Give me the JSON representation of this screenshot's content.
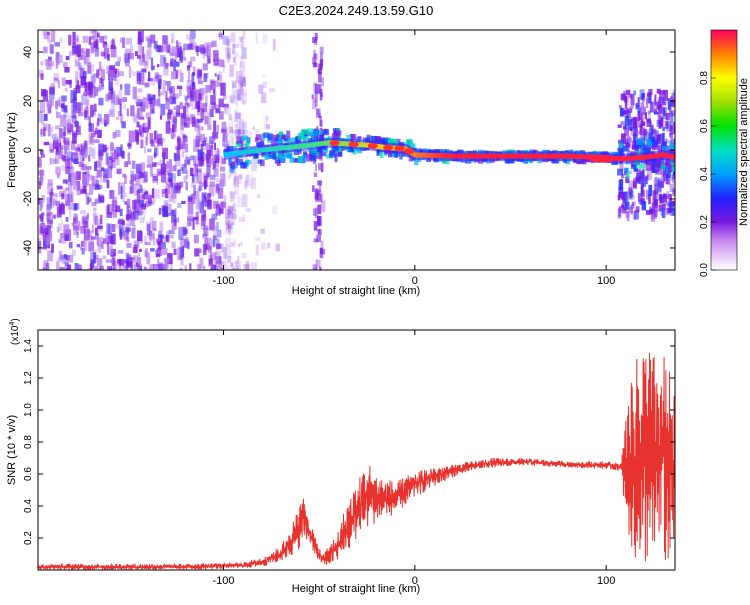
{
  "title": "C2E3.2024.249.13.59.G10",
  "colors": {
    "trace": "#e8322e",
    "spectrum_main": "#7a18e0"
  },
  "chart_data": [
    {
      "type": "heatmap",
      "xlabel": "Height of straight line (km)",
      "ylabel": "Frequency (Hz)",
      "xlim": [
        -197,
        136
      ],
      "ylim": [
        -49,
        49
      ],
      "x_ticks": [
        -100,
        0,
        100
      ],
      "x_tick_labels": [
        "-100",
        "0",
        "100"
      ],
      "y_ticks": [
        -40,
        -20,
        0,
        20,
        40
      ],
      "y_tick_labels": [
        "-40",
        "-20",
        "0",
        "20",
        "40"
      ],
      "colorbar": {
        "label": "Normalized spectral amplitude",
        "range": [
          0,
          1
        ],
        "ticks": [
          0.0,
          0.2,
          0.4,
          0.6,
          0.8
        ],
        "tick_labels": [
          "0.0",
          "0.2",
          "0.4",
          "0.6",
          "0.8"
        ]
      },
      "ridge": {
        "x": [
          -100,
          -80,
          -60,
          -45,
          -35,
          -25,
          -15,
          -5,
          0,
          20,
          40,
          60,
          80,
          95,
          105,
          110,
          120,
          130,
          136
        ],
        "y": [
          -2,
          0,
          1.5,
          3,
          2.5,
          2,
          1,
          0.5,
          -2,
          -2.5,
          -2.5,
          -2.5,
          -2.5,
          -3,
          -3.5,
          -3.5,
          -3,
          -2,
          -3
        ]
      }
    },
    {
      "type": "line",
      "xlabel": "Height of straight line (km)",
      "ylabel": "SNR (10 * v/v)",
      "y_multiplier": "(x10",
      "y_multiplier_exp": "4",
      "y_multiplier_close": ")",
      "xlim": [
        -197,
        136
      ],
      "ylim": [
        0,
        1.5
      ],
      "x_ticks": [
        -100,
        0,
        100
      ],
      "x_tick_labels": [
        "-100",
        "0",
        "100"
      ],
      "y_ticks": [
        0.2,
        0.4,
        0.6,
        0.8,
        1.0,
        1.2,
        1.4
      ],
      "y_tick_labels": [
        "0.2",
        "0.4",
        "0.6",
        "0.8",
        "1.0",
        "1.2",
        "1.4"
      ],
      "envelope": {
        "x": [
          -197,
          -120,
          -90,
          -80,
          -70,
          -62,
          -58,
          -52,
          -48,
          -40,
          -35,
          -30,
          -25,
          -20,
          -10,
          0,
          10,
          20,
          30,
          40,
          60,
          80,
          100,
          108,
          110,
          115,
          120,
          125,
          130,
          136
        ],
        "upper": [
          0.04,
          0.04,
          0.05,
          0.08,
          0.15,
          0.35,
          0.48,
          0.2,
          0.1,
          0.25,
          0.45,
          0.55,
          0.7,
          0.6,
          0.55,
          0.62,
          0.65,
          0.66,
          0.68,
          0.7,
          0.7,
          0.68,
          0.68,
          0.67,
          0.95,
          1.3,
          1.45,
          1.35,
          1.42,
          1.1
        ],
        "lower": [
          0.0,
          0.0,
          0.01,
          0.02,
          0.05,
          0.1,
          0.2,
          0.08,
          0.02,
          0.05,
          0.1,
          0.2,
          0.25,
          0.3,
          0.35,
          0.45,
          0.52,
          0.58,
          0.62,
          0.64,
          0.65,
          0.64,
          0.63,
          0.62,
          0.3,
          0.05,
          0.02,
          0.05,
          0.02,
          0.02
        ]
      }
    }
  ]
}
